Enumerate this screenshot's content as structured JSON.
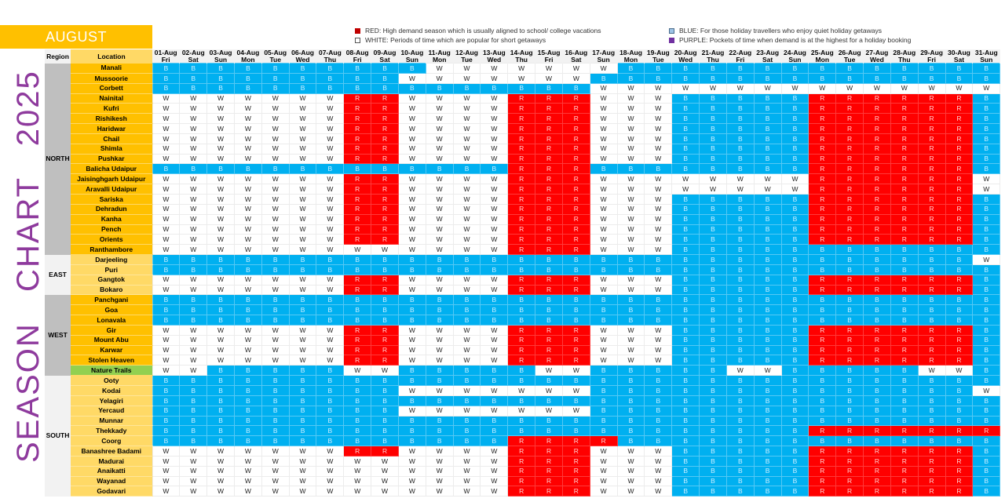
{
  "header": {
    "month": "AUGUST",
    "side_title": "SEASON   CHART   2025"
  },
  "legend": {
    "items": [
      {
        "key": "R",
        "color": "#c00000",
        "text": "RED: High demand season which is usually aligned to school/ college vacations"
      },
      {
        "key": "W",
        "color": "#ffffff",
        "text": "WHITE: Periods of time which are popular for short getaways"
      },
      {
        "key": "B",
        "color": "#9dc3e6",
        "text": "BLUE: For those holiday travellers who enjoy quiet holiday getaways"
      },
      {
        "key": "P",
        "color": "#7030a0",
        "text": "PURPLE: Pockets of time when demand is at the highest for a holiday booking"
      }
    ]
  },
  "table": {
    "region_header": "Region",
    "location_header": "Location",
    "dates": [
      "01-Aug",
      "02-Aug",
      "03-Aug",
      "04-Aug",
      "05-Aug",
      "06-Aug",
      "07-Aug",
      "08-Aug",
      "09-Aug",
      "10-Aug",
      "11-Aug",
      "12-Aug",
      "13-Aug",
      "14-Aug",
      "15-Aug",
      "16-Aug",
      "17-Aug",
      "18-Aug",
      "19-Aug",
      "20-Aug",
      "21-Aug",
      "22-Aug",
      "23-Aug",
      "24-Aug",
      "25-Aug",
      "26-Aug",
      "27-Aug",
      "28-Aug",
      "29-Aug",
      "30-Aug",
      "31-Aug"
    ],
    "days": [
      "Fri",
      "Sat",
      "Sun",
      "Mon",
      "Tue",
      "Wed",
      "Thu",
      "Fri",
      "Sat",
      "Sun",
      "Mon",
      "Tue",
      "Wed",
      "Thu",
      "Fri",
      "Sat",
      "Sun",
      "Mon",
      "Tue",
      "Wed",
      "Thu",
      "Fri",
      "Sat",
      "Sun",
      "Mon",
      "Tue",
      "Wed",
      "Thu",
      "Fri",
      "Sat",
      "Sun"
    ],
    "regions": [
      {
        "name": "NORTH",
        "style": "dark",
        "rows": [
          {
            "location": "Manali",
            "codes": "BBBBBBBBBBWWWWWWWBBBBBBBBBBBBBB"
          },
          {
            "location": "Mussoorie",
            "codes": "BBBBBBBBBWWWWWWWBBBBBBBBBBBBBBB"
          },
          {
            "location": "Corbett",
            "codes": "BBBBBBBBBBBBBBBBWWWWWWWWWWWWWWW"
          },
          {
            "location": "Nainital",
            "codes": "WWWWWWWRRWWWWRRRWWWBBBBBRRRRRRB"
          },
          {
            "location": "Kufri",
            "codes": "WWWWWWWRRWWWWRRRWWWBBBBBRRRRRRB"
          },
          {
            "location": "Rishikesh",
            "codes": "WWWWWWWRRWWWWRRRWWWBBBBBRRRRRRB"
          },
          {
            "location": "Haridwar",
            "codes": "WWWWWWWRRWWWWRRRWWWBBBBBRRRRRRB"
          },
          {
            "location": "Chail",
            "codes": "WWWWWWWRRWWWWRRRWWWBBBBBRRRRRRB"
          },
          {
            "location": "Shimla",
            "codes": "WWWWWWWRRWWWWRRRWWWBBBBBRRRRRRB"
          },
          {
            "location": "Pushkar",
            "codes": "WWWWWWWRRWWWWRRRWWWBBBBBRRRRRRB"
          },
          {
            "location": "Balicha Udaipur",
            "codes": "BBBBBBBBBBBBBRRRBBBBBBBBRRRRRRB"
          },
          {
            "location": "Jaisinghgarh Udaipur",
            "codes": "WWWWWWWRRWWWWRRRWWWWWWWWRRRRRRW"
          },
          {
            "location": "Aravalli Udaipur",
            "codes": "WWWWWWWRRWWWWRRRWWWWWWWWRRRRRRW"
          },
          {
            "location": "Sariska",
            "codes": "WWWWWWWRRWWWWRRRWWWBBBBBRRRRRRB"
          },
          {
            "location": "Dehradun",
            "codes": "WWWWWWWRRWWWWRRRWWWBBBBBRRRRRRB"
          },
          {
            "location": "Kanha",
            "codes": "WWWWWWWRRWWWWRRRWWWBBBBBRRRRRRB"
          },
          {
            "location": "Pench",
            "codes": "WWWWWWWRRWWWWRRRWWWBBBBBRRRRRRB"
          },
          {
            "location": "Orients",
            "codes": "WWWWWWWRRWWWWRRRWWWBBBBBRRRRRRB"
          },
          {
            "location": "Ranthambore",
            "codes": "WWWWWWWWWWWWWRRRWWWBBBBBBBBBBBB"
          }
        ]
      },
      {
        "name": "EAST",
        "style": "light",
        "rows": [
          {
            "location": "Darjeeling",
            "codes": "BBBBBBBBBBBBBBBBBBBBBBBBBBBBBBW"
          },
          {
            "location": "Puri",
            "codes": "BBBBBBBBBBBBBBBBBBBBBBBBBBBBBBB"
          },
          {
            "location": "Gangtok",
            "codes": "WWWWWWWRRWWWWRRRWWWBBBBBRRRRRRB"
          },
          {
            "location": "Bokaro",
            "codes": "WWWWWWWRRWWWWRRRWWWBBBBBRRRRRRB"
          }
        ]
      },
      {
        "name": "WEST",
        "style": "dark",
        "rows": [
          {
            "location": "Panchgani",
            "codes": "BBBBBBBBBBBBBBBBBBBBBBBBBBBBBBB"
          },
          {
            "location": "Goa",
            "codes": "BBBBBBBBBBBBBBBBBBBBBBBBBBBBBBB"
          },
          {
            "location": "Lonavala",
            "codes": "BBBBBBBBBBBBBBBBBBBBBBBBBBBBBBB"
          },
          {
            "location": "Gir",
            "codes": "WWWWWWWRRWWWWRRRWWWBBBBBRRRRRRB"
          },
          {
            "location": "Mount Abu",
            "codes": "WWWWWWWRRWWWWRRRWWWBBBBBRRRRRRB"
          },
          {
            "location": "Karwar",
            "codes": "WWWWWWWRRWWWWRRRWWWBBBBBRRRRRRB"
          },
          {
            "location": "Stolen Heaven",
            "codes": "WWWWWWWRRWWWWRRRWWWBBBBBRRRRRRB"
          },
          {
            "location": "Nature Trails",
            "codes": "WWBBBBBWWBBBBBWWBBBBBWWBBBBBWWB",
            "highlight": "green"
          }
        ]
      },
      {
        "name": "SOUTH",
        "style": "light",
        "rows": [
          {
            "location": "Ooty",
            "codes": "BBBBBBBBBBBBBBBBBBBBBBBBBBBBBBB"
          },
          {
            "location": "Kodai",
            "codes": "BBBBBBBBBWWWWWWWBBBBBBBBBBBBBBW"
          },
          {
            "location": "Yelagiri",
            "codes": "BBBBBBBBBBBBBBBBBBBBBBBBBBBBBBB"
          },
          {
            "location": "Yercaud",
            "codes": "BBBBBBBBBWWWWWWWBBBBBBBBBBBBBBB"
          },
          {
            "location": "Munnar",
            "codes": "BBBBBBBBBBBBBBBBBBBBBBBBBBBBBBB"
          },
          {
            "location": "Thekkady",
            "codes": "BBBBBBBBBBBBBBBBBBBBBBBBRRRRRRR"
          },
          {
            "location": "Coorg",
            "codes": "BBBBBBBBBBBBBRRRRBBBBBBBBBBBBBB"
          },
          {
            "location": "Banashree Badami",
            "codes": "WWWWWWWRRWWWWRRRWWWBBBBBRRRRRRB"
          },
          {
            "location": "Madurai",
            "codes": "WWWWWWWWWWWWWRRRWWWBBBBBRRRRRRB"
          },
          {
            "location": "Anaikatti",
            "codes": "WWWWWWWWWWWWWRRRWWWBBBBBRRRRRRB"
          },
          {
            "location": "Wayanad",
            "codes": "WWWWWWWWWWWWWRRRWWWBBBBBRRRRRRB"
          },
          {
            "location": "Godavari",
            "codes": "WWWWWWWWWWWWWRRRWWWBBBBBRRRRRRB"
          }
        ]
      }
    ]
  },
  "colors": {
    "B": "#00b0f0",
    "R": "#ff0000",
    "W": "#ffffff",
    "banner": "#ffc000",
    "title": "#8e3a9d"
  }
}
